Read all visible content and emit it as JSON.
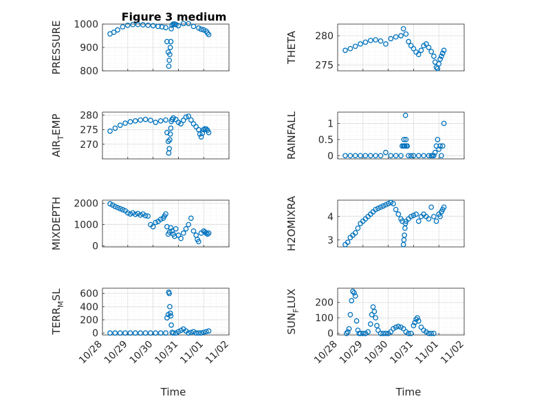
{
  "title": "Figure 3 medium",
  "x_axis": {
    "label": "Time",
    "ticks": [
      "10/28",
      "10/29",
      "10/30",
      "10/31",
      "11/01",
      "11/02"
    ]
  },
  "colors": {
    "marker": "#0072bd",
    "grid": "#dddddd",
    "axis": "#262626"
  },
  "chart_data": [
    {
      "type": "scatter",
      "ylabel": "PRESSURE",
      "ylim": [
        800,
        1000
      ],
      "yticks": [
        800,
        900,
        1000
      ],
      "grid": true,
      "x": [
        0.3,
        0.45,
        0.6,
        0.8,
        1.0,
        1.2,
        1.4,
        1.6,
        1.8,
        2.0,
        2.2,
        2.35,
        2.5,
        2.55,
        2.6,
        2.62,
        2.64,
        2.66,
        2.68,
        2.7,
        2.72,
        2.75,
        2.8,
        2.85,
        2.9,
        3.0,
        3.2,
        3.4,
        3.6,
        3.8,
        3.9,
        4.0,
        4.1,
        4.15,
        4.2
      ],
      "y": [
        958,
        965,
        975,
        988,
        995,
        998,
        998,
        997,
        995,
        993,
        990,
        988,
        985,
        925,
        880,
        820,
        845,
        870,
        900,
        925,
        980,
        995,
        1000,
        1000,
        998,
        993,
        1002,
        1002,
        990,
        983,
        978,
        975,
        970,
        962,
        955
      ]
    },
    {
      "type": "scatter",
      "ylabel": "THETA",
      "ylim": [
        274,
        282
      ],
      "yticks": [
        275,
        280
      ],
      "grid": true,
      "x": [
        0.3,
        0.5,
        0.7,
        0.9,
        1.1,
        1.3,
        1.5,
        1.7,
        1.9,
        2.1,
        2.3,
        2.5,
        2.6,
        2.7,
        2.8,
        2.9,
        3.0,
        3.1,
        3.2,
        3.3,
        3.4,
        3.5,
        3.6,
        3.7,
        3.8,
        3.85,
        3.9,
        3.95,
        4.0,
        4.05,
        4.1,
        4.15,
        4.2
      ],
      "y": [
        277.5,
        277.8,
        278.2,
        278.6,
        278.9,
        279.2,
        279.3,
        279.1,
        278.6,
        279.5,
        279.8,
        280.0,
        281.2,
        280.3,
        279.0,
        278.3,
        277.8,
        277.2,
        276.8,
        277.5,
        278.3,
        278.6,
        278.0,
        277.3,
        276.5,
        275.5,
        274.6,
        274.4,
        275.2,
        276.0,
        276.5,
        277.0,
        277.5
      ]
    },
    {
      "type": "scatter",
      "ylabel": "AIR_TEMP",
      "ylabel_main": "AIR",
      "ylabel_sub": "T",
      "ylabel_rest": "EMP",
      "ylim": [
        265,
        281
      ],
      "yticks": [
        270,
        275,
        280
      ],
      "grid": true,
      "x": [
        0.3,
        0.5,
        0.7,
        0.9,
        1.1,
        1.3,
        1.5,
        1.7,
        1.9,
        2.1,
        2.3,
        2.5,
        2.55,
        2.6,
        2.62,
        2.64,
        2.66,
        2.68,
        2.7,
        2.72,
        2.75,
        2.8,
        2.9,
        3.0,
        3.1,
        3.2,
        3.3,
        3.4,
        3.5,
        3.6,
        3.7,
        3.8,
        3.85,
        3.9,
        3.95,
        4.0,
        4.05,
        4.1,
        4.15,
        4.2
      ],
      "y": [
        274.5,
        275.5,
        276.5,
        277.2,
        277.7,
        278.0,
        278.3,
        278.5,
        278.2,
        277.5,
        278.0,
        278.3,
        274.0,
        271.0,
        267.0,
        268.5,
        271.5,
        273.5,
        275.5,
        277.8,
        278.5,
        279.0,
        278.5,
        277.5,
        277.0,
        278.2,
        279.3,
        279.6,
        278.3,
        277.0,
        276.0,
        275.0,
        273.5,
        272.5,
        273.8,
        275.0,
        275.3,
        275.2,
        274.8,
        274.0
      ]
    },
    {
      "type": "scatter",
      "ylabel": "RAINFALL",
      "ylim": [
        -0.1,
        1.35
      ],
      "yticks": [
        0,
        0.5,
        1
      ],
      "grid": true,
      "x": [
        0.3,
        0.5,
        0.7,
        0.9,
        1.1,
        1.3,
        1.5,
        1.7,
        1.9,
        2.1,
        2.3,
        2.5,
        2.55,
        2.6,
        2.62,
        2.64,
        2.66,
        2.68,
        2.7,
        2.72,
        2.75,
        2.8,
        2.9,
        3.0,
        3.2,
        3.4,
        3.6,
        3.7,
        3.75,
        3.8,
        3.85,
        3.9,
        3.95,
        4.0,
        4.05,
        4.1,
        4.15,
        4.2
      ],
      "y": [
        0,
        0,
        0,
        0,
        0,
        0,
        0,
        0,
        0.1,
        0,
        0,
        0,
        0.3,
        0.3,
        0.5,
        0.3,
        0.3,
        1.25,
        0.5,
        0.3,
        0.3,
        0,
        0,
        0,
        0,
        0,
        0,
        0,
        0,
        0,
        0.1,
        0.3,
        0.5,
        0.2,
        0.3,
        0,
        0.3,
        1.0
      ]
    },
    {
      "type": "scatter",
      "ylabel": "MIXDEPTH",
      "ylim": [
        -50,
        2150
      ],
      "yticks": [
        0,
        1000,
        2000
      ],
      "grid": true,
      "x": [
        0.3,
        0.4,
        0.5,
        0.6,
        0.7,
        0.8,
        0.9,
        1.0,
        1.1,
        1.2,
        1.3,
        1.4,
        1.5,
        1.6,
        1.7,
        1.8,
        1.9,
        2.0,
        2.1,
        2.2,
        2.3,
        2.4,
        2.45,
        2.5,
        2.55,
        2.6,
        2.65,
        2.7,
        2.75,
        2.8,
        2.85,
        2.9,
        3.0,
        3.1,
        3.2,
        3.3,
        3.4,
        3.5,
        3.6,
        3.7,
        3.75,
        3.8,
        3.9,
        4.0,
        4.05,
        4.1,
        4.15,
        4.2
      ],
      "y": [
        1980,
        1920,
        1850,
        1800,
        1750,
        1700,
        1650,
        1550,
        1500,
        1550,
        1480,
        1520,
        1450,
        1500,
        1420,
        1400,
        1000,
        900,
        1100,
        1150,
        1250,
        1300,
        1400,
        1500,
        900,
        550,
        650,
        850,
        700,
        550,
        450,
        800,
        500,
        350,
        600,
        800,
        1000,
        1300,
        700,
        500,
        300,
        200,
        600,
        700,
        650,
        600,
        550,
        600
      ]
    },
    {
      "type": "scatter",
      "ylabel": "H2OMIXRA",
      "ylim": [
        2.7,
        4.7
      ],
      "yticks": [
        3,
        4
      ],
      "grid": true,
      "x": [
        0.3,
        0.4,
        0.5,
        0.6,
        0.7,
        0.8,
        0.9,
        1.0,
        1.1,
        1.2,
        1.3,
        1.4,
        1.5,
        1.6,
        1.7,
        1.8,
        1.9,
        2.0,
        2.1,
        2.2,
        2.3,
        2.4,
        2.5,
        2.55,
        2.6,
        2.62,
        2.64,
        2.66,
        2.68,
        2.7,
        2.8,
        2.9,
        3.0,
        3.1,
        3.2,
        3.3,
        3.4,
        3.5,
        3.6,
        3.7,
        3.8,
        3.9,
        4.0,
        4.05,
        4.1,
        4.15,
        4.2
      ],
      "y": [
        2.8,
        2.9,
        3.1,
        3.2,
        3.3,
        3.5,
        3.7,
        3.8,
        3.9,
        4.0,
        4.1,
        4.2,
        4.3,
        4.35,
        4.4,
        4.45,
        4.5,
        4.55,
        4.6,
        4.55,
        4.3,
        4.1,
        3.9,
        3.8,
        2.8,
        3.0,
        3.2,
        3.5,
        3.7,
        3.8,
        3.9,
        4.0,
        4.05,
        4.1,
        3.8,
        4.0,
        4.1,
        4.0,
        3.9,
        4.4,
        4.0,
        3.8,
        4.1,
        4.0,
        4.2,
        4.3,
        4.4
      ]
    },
    {
      "type": "scatter",
      "ylabel": "TERR_MSL",
      "ylabel_main": "TERR",
      "ylabel_sub": "M",
      "ylabel_rest": "SL",
      "ylim": [
        -30,
        680
      ],
      "yticks": [
        0,
        200,
        400,
        600
      ],
      "grid": true,
      "x": [
        0.3,
        0.5,
        0.7,
        0.9,
        1.1,
        1.3,
        1.5,
        1.7,
        1.9,
        2.1,
        2.3,
        2.5,
        2.55,
        2.6,
        2.62,
        2.64,
        2.66,
        2.68,
        2.7,
        2.72,
        2.75,
        2.8,
        2.9,
        3.0,
        3.1,
        3.2,
        3.3,
        3.4,
        3.5,
        3.6,
        3.7,
        3.8,
        3.9,
        4.0,
        4.1,
        4.2
      ],
      "y": [
        0,
        0,
        0,
        0,
        0,
        0,
        0,
        0,
        0,
        0,
        0,
        0,
        230,
        280,
        620,
        600,
        400,
        300,
        260,
        120,
        10,
        0,
        0,
        20,
        40,
        60,
        30,
        0,
        10,
        20,
        0,
        0,
        0,
        10,
        20,
        30
      ]
    },
    {
      "type": "scatter",
      "ylabel": "SUN_FLUX",
      "ylabel_main": "SUN",
      "ylabel_sub": "F",
      "ylabel_rest": "LUX",
      "ylim": [
        -10,
        290
      ],
      "yticks": [
        0,
        100,
        200
      ],
      "grid": true,
      "x": [
        0.35,
        0.4,
        0.45,
        0.5,
        0.55,
        0.6,
        0.65,
        0.7,
        0.75,
        0.8,
        0.85,
        0.9,
        1.0,
        1.1,
        1.2,
        1.3,
        1.35,
        1.4,
        1.45,
        1.5,
        1.55,
        1.6,
        1.7,
        1.8,
        1.9,
        2.0,
        2.1,
        2.2,
        2.3,
        2.4,
        2.5,
        2.6,
        2.7,
        2.8,
        2.9,
        3.0,
        3.05,
        3.1,
        3.15,
        3.2,
        3.3,
        3.4,
        3.5,
        3.6,
        3.7,
        3.8
      ],
      "y": [
        0,
        10,
        30,
        120,
        210,
        270,
        260,
        240,
        80,
        20,
        0,
        0,
        0,
        0,
        10,
        60,
        120,
        170,
        140,
        100,
        50,
        20,
        0,
        0,
        0,
        0,
        10,
        30,
        40,
        45,
        40,
        30,
        10,
        0,
        0,
        50,
        70,
        90,
        100,
        80,
        40,
        20,
        10,
        0,
        0,
        0
      ]
    }
  ]
}
